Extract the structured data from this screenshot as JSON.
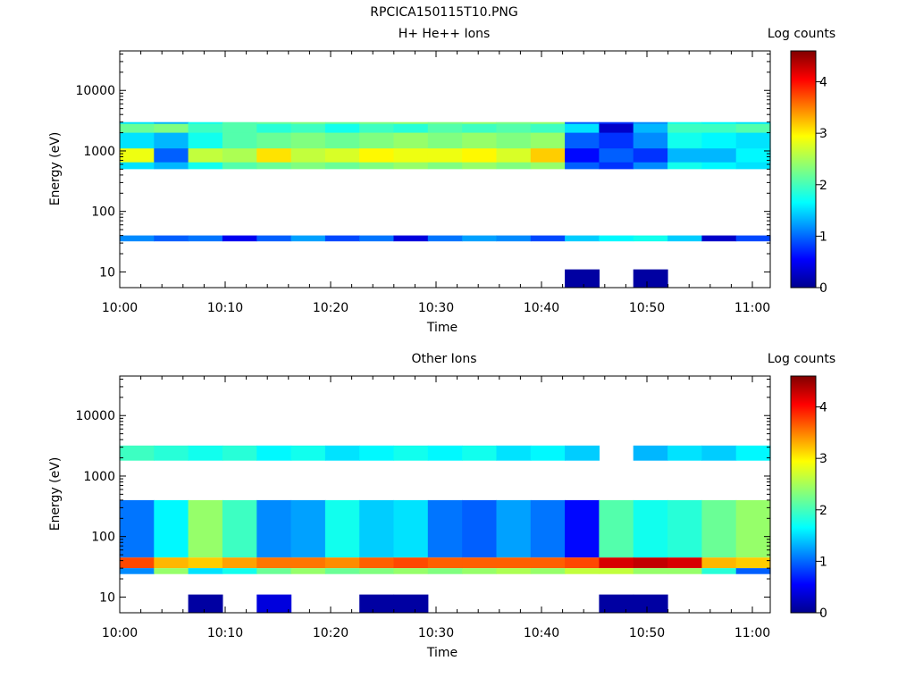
{
  "figure_title": "RPCICA150115T10.PNG",
  "colormap": [
    "#00008f",
    "#0000ff",
    "#0080ff",
    "#00ffff",
    "#80ff80",
    "#ffff00",
    "#ff8000",
    "#ff0000",
    "#800000"
  ],
  "chart_data": [
    {
      "type": "heatmap",
      "title": "H+ He++ Ions",
      "xlabel": "Time",
      "ylabel": "Energy (eV)",
      "xticks": [
        "10:00",
        "10:10",
        "10:20",
        "10:30",
        "10:40",
        "10:50",
        "11:00"
      ],
      "yticks": [
        "10",
        "100",
        "1000",
        "10000"
      ],
      "ylog": true,
      "ylim": [
        5.5,
        45000
      ],
      "colorbar_label": "Log counts",
      "colorbar_ticks": [
        "0",
        "1",
        "2",
        "3",
        "4"
      ],
      "zlim": [
        0,
        4.6
      ],
      "columns": 19,
      "bands": [
        {
          "e0": 500,
          "e1": 3000,
          "z": [
            1.6,
            1.4,
            1.8,
            2.1,
            2.2,
            2.3,
            2.2,
            2.3,
            2.4,
            2.3,
            2.4,
            2.3,
            2.4,
            1.0,
            0.8,
            1.2,
            1.8,
            1.7,
            1.6
          ]
        },
        {
          "e0": 650,
          "e1": 1100,
          "z": [
            2.8,
            1.0,
            2.6,
            2.5,
            3.0,
            2.6,
            2.7,
            2.9,
            2.8,
            2.8,
            2.9,
            2.7,
            3.1,
            0.6,
            1.0,
            0.8,
            1.4,
            1.4,
            1.7
          ]
        },
        {
          "e0": 2000,
          "e1": 2800,
          "z": [
            2.2,
            2.3,
            2.0,
            2.1,
            1.9,
            2.0,
            1.8,
            2.0,
            1.9,
            2.1,
            2.0,
            2.1,
            2.0,
            1.6,
            0.3,
            1.4,
            2.0,
            2.0,
            2.1
          ]
        },
        {
          "e0": 32,
          "e1": 40,
          "z": [
            1.2,
            1.0,
            1.1,
            0.5,
            1.0,
            1.3,
            0.9,
            1.1,
            0.4,
            1.1,
            1.3,
            1.2,
            0.9,
            1.5,
            1.7,
            1.8,
            1.5,
            0.3,
            0.9
          ]
        },
        {
          "e0": 5.5,
          "e1": 11,
          "z": [
            null,
            null,
            null,
            null,
            null,
            null,
            null,
            null,
            null,
            null,
            null,
            null,
            null,
            0.1,
            null,
            0.1,
            null,
            null,
            null
          ]
        }
      ]
    },
    {
      "type": "heatmap",
      "title": "Other Ions",
      "xlabel": "Time",
      "ylabel": "Energy (eV)",
      "xticks": [
        "10:00",
        "10:10",
        "10:20",
        "10:30",
        "10:40",
        "10:50",
        "11:00"
      ],
      "yticks": [
        "10",
        "100",
        "1000",
        "10000"
      ],
      "ylog": true,
      "ylim": [
        5.5,
        45000
      ],
      "colorbar_label": "Log counts",
      "colorbar_ticks": [
        "0",
        "1",
        "2",
        "3",
        "4"
      ],
      "zlim": [
        0,
        4.6
      ],
      "columns": 19,
      "bands": [
        {
          "e0": 1800,
          "e1": 3200,
          "z": [
            2.0,
            1.9,
            1.8,
            1.9,
            1.7,
            1.8,
            1.6,
            1.7,
            1.8,
            1.7,
            1.8,
            1.6,
            1.7,
            1.5,
            null,
            1.4,
            1.6,
            1.5,
            1.7
          ]
        },
        {
          "e0": 45,
          "e1": 400,
          "z": [
            1.1,
            1.7,
            2.4,
            2.0,
            1.2,
            1.3,
            1.8,
            1.5,
            1.6,
            1.1,
            1.0,
            1.3,
            1.1,
            0.6,
            2.1,
            1.8,
            1.9,
            2.2,
            2.4
          ]
        },
        {
          "e0": 30,
          "e1": 45,
          "z": [
            3.7,
            3.2,
            3.1,
            3.3,
            3.5,
            3.5,
            3.4,
            3.6,
            3.7,
            3.6,
            3.6,
            3.6,
            3.6,
            3.7,
            4.2,
            4.3,
            4.2,
            3.2,
            3.1
          ]
        },
        {
          "e0": 24,
          "e1": 30,
          "z": [
            1.2,
            2.4,
            1.6,
            1.8,
            2.2,
            2.4,
            2.2,
            2.3,
            2.4,
            2.3,
            2.4,
            2.5,
            2.4,
            2.6,
            2.6,
            2.4,
            2.4,
            1.9,
            1.0
          ]
        },
        {
          "e0": 5.5,
          "e1": 11,
          "z": [
            null,
            null,
            0.1,
            null,
            0.4,
            null,
            null,
            0.1,
            0.1,
            null,
            null,
            null,
            null,
            null,
            0.1,
            0.1,
            null,
            null,
            null
          ]
        }
      ]
    }
  ]
}
